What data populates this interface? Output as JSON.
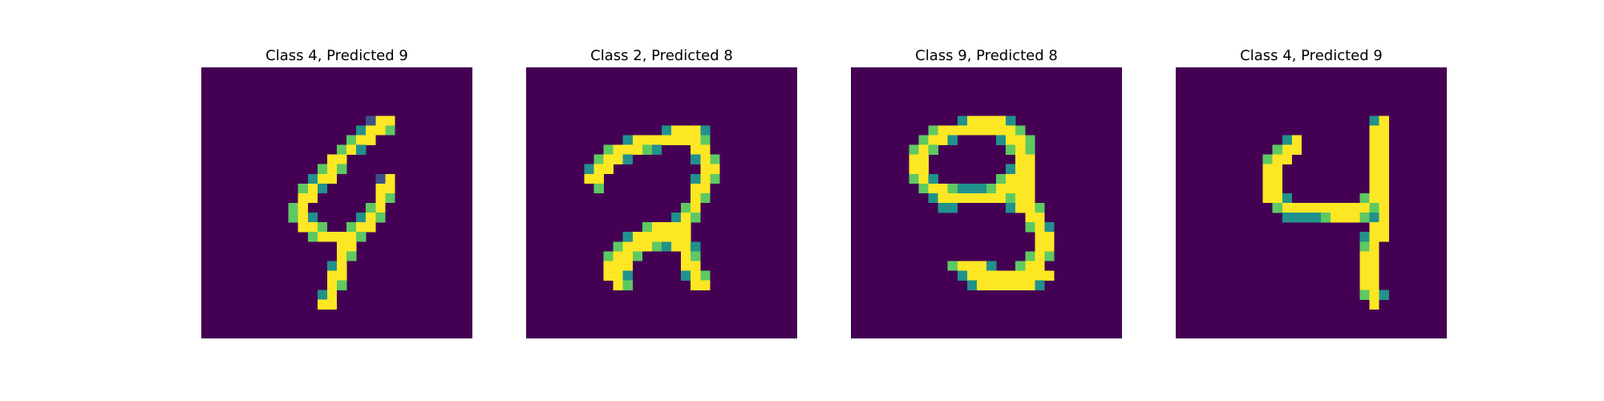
{
  "colormap": {
    "low": "#440154",
    "dark": "#3b528b",
    "mid": "#21918c",
    "light": "#5ec962",
    "high": "#fde725"
  },
  "panels": [
    {
      "title": "Class 4, Predicted 9",
      "image_grid": [
        "............................",
        "............................",
        "............................",
        "............................",
        "............................",
        ".................+##........",
        "................o##*........",
        "...............*##..........",
        "..............*#o...........",
        ".............##.............",
        "............*#*.............",
        "...........o##....+#........",
        "..........*#o.....##........",
        "..........##......#*........",
        ".........*#......*#.........",
        ".........*#o....o#*.........",
        "..........##*..*##..........",
        "...........*####*...........",
        "..............##............",
        "..............#*............",
        ".............o#.............",
        ".............##.............",
        ".............#*.............",
        "............o#..............",
        "............##..............",
        "............................",
        "............................",
        "............................"
      ]
    },
    {
      "title": "Class 2, Predicted 8",
      "image_grid": [
        "............................",
        "............................",
        "............................",
        "............................",
        "............................",
        "............................",
        "..............o###o.........",
        "..........o#######*.........",
        "........*###*o...##.........",
        ".......*##o......o#*........",
        "......o##.........##........",
        "......##.........o#*........",
        ".......*.........##.........",
        ".................#*.........",
        "................*#..........",
        "...............o#*..........",
        "............*####...........",
        "..........o######...........",
        ".........*###*o##o..........",
        "........*##*....#*..........",
        "........###.....##..........",
        "........##o.....o#*.........",
        ".........#*......##.........",
        "........................... ",
        "............................",
        "............................",
        "............................",
        "............................"
      ]
    },
    {
      "title": "Class 9, Predicted 8",
      "image_grid": [
        "............................",
        "............................",
        "............................",
        "............................",
        "............................",
        "...........o####o...........",
        "........*########*..........",
        ".......*##o....o##*.........",
        "......*#*.......*#*.........",
        "......##.........##.........",
        "......##........o##.........",
        "......*#o......*###.........",
        ".......*##*ooo*####.........",
        "........o#######*##.........",
        ".........oo.....o##*........",
        "..................##........",
        "..................*#o.......",
        "...................##.......",
        "...................##.......",
        "..................*#*.......",
        "..........*###o..*##........",
        "...........o#########.......",
        "............o######o........",
        "............................",
        "............................",
        "............................",
        "............................",
        "............................"
      ]
    },
    {
      "title": "Class 4, Predicted 9",
      "image_grid": [
        "............................",
        "............................",
        "............................",
        "............................",
        "............................",
        "....................o#......",
        "....................##......",
        "...........o#.......##......",
        "..........*##.......##......",
        ".........*##........##......",
        ".........##.........##......",
        ".........##.........##......",
        ".........##.........##......",
        ".........##o.......*##......",
        "..........*#########*#......",
        "...........oooo*###*o#......",
        "....................##......",
        "...................o##......",
        "...................*#.......",
        "...................##.......",
        "...................##.......",
        "...................##.......",
        "...................##.......",
        "...................*#o......",
        "....................#.......",
        "............................",
        "............................",
        "............................"
      ]
    }
  ]
}
